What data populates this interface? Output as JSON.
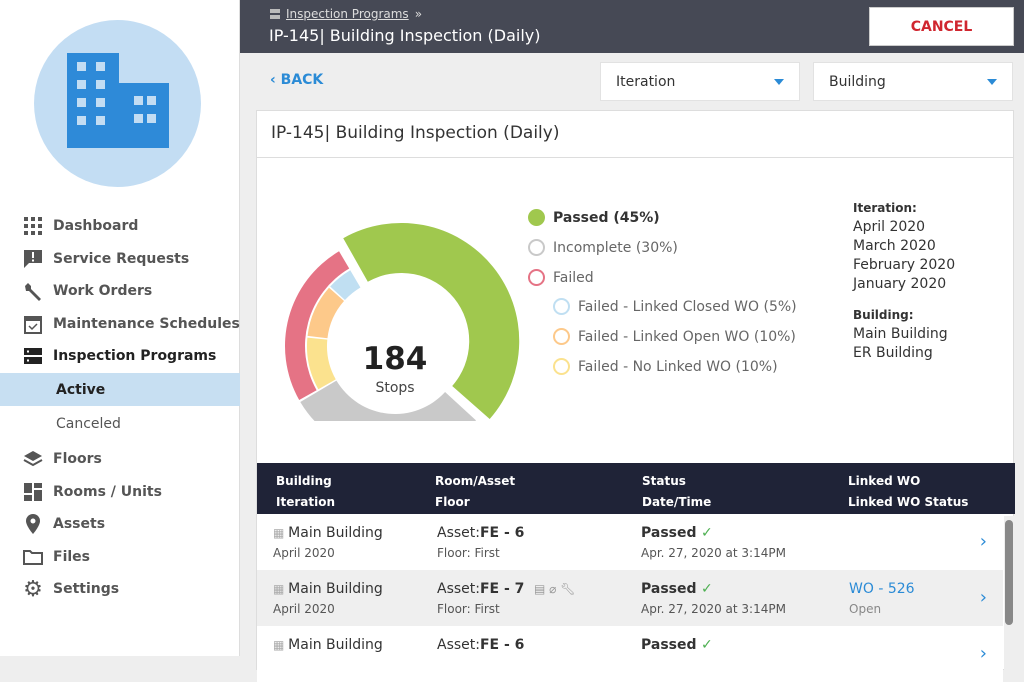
{
  "sidebar": {
    "items": [
      {
        "label": "Dashboard",
        "icon": "grid-icon"
      },
      {
        "label": "Service Requests",
        "icon": "alert-message-icon"
      },
      {
        "label": "Work Orders",
        "icon": "wrench-icon"
      },
      {
        "label": "Maintenance Schedules",
        "icon": "calendar-check-icon"
      },
      {
        "label": "Inspection Programs",
        "icon": "server-icon"
      },
      {
        "label": "Floors",
        "icon": "layers-icon"
      },
      {
        "label": "Rooms / Units",
        "icon": "dashboard-tiles-icon"
      },
      {
        "label": "Assets",
        "icon": "map-pin-icon"
      },
      {
        "label": "Files",
        "icon": "folder-icon"
      },
      {
        "label": "Settings",
        "icon": "gear-icon"
      }
    ],
    "sub": [
      "Active",
      "Canceled"
    ]
  },
  "header": {
    "breadcrumb": "Inspection Programs",
    "sep": "»",
    "title": "IP-145| Building Inspection (Daily)",
    "cancel": "CANCEL"
  },
  "toolbar": {
    "back": "BACK",
    "iteration": "Iteration",
    "building": "Building"
  },
  "card": {
    "title": "IP-145| Building Inspection (Daily)"
  },
  "chart_data": {
    "type": "pie",
    "center_value": "184",
    "center_label": "Stops",
    "outer": [
      {
        "label": "Passed (45%)",
        "value": 45,
        "color": "#a0c84e"
      },
      {
        "label": "Incomplete (30%)",
        "value": 30,
        "color": "#c9c9c9"
      },
      {
        "label": "Failed",
        "value": 25,
        "color": "#e57385"
      }
    ],
    "inner": [
      {
        "label": "Failed - No Linked WO (10%)",
        "value": 10,
        "color": "#fbe28e"
      },
      {
        "label": "Failed - Linked Open WO (10%)",
        "value": 10,
        "color": "#fdc98a"
      },
      {
        "label": "Failed - Linked Closed WO (5%)",
        "value": 5,
        "color": "#c0dff2"
      }
    ]
  },
  "filters": {
    "iteration_label": "Iteration:",
    "iterations": [
      "April 2020",
      "March 2020",
      "February 2020",
      "January 2020"
    ],
    "building_label": "Building:",
    "buildings": [
      "Main Building",
      "ER Building"
    ]
  },
  "table": {
    "headers": [
      [
        "Building",
        "Iteration"
      ],
      [
        "Room/Asset",
        "Floor"
      ],
      [
        "Status",
        "Date/Time"
      ],
      [
        "Linked WO",
        "Linked WO Status"
      ]
    ],
    "rows": [
      {
        "building": "Main Building",
        "iteration": "April 2020",
        "asset_prefix": "Asset:",
        "asset": "FE - 6",
        "floor": "Floor: First",
        "status": "Passed",
        "check": "✓",
        "date": "Apr. 27, 2020 at 3:14PM",
        "wo": "",
        "wo_status": ""
      },
      {
        "building": "Main Building",
        "iteration": "April 2020",
        "asset_prefix": "Asset:",
        "asset": "FE - 7",
        "floor": "Floor: First",
        "status": "Passed",
        "check": "✓",
        "date": "Apr. 27, 2020 at 3:14PM",
        "wo": "WO - 526",
        "wo_status": "Open"
      },
      {
        "building": "Main Building",
        "iteration": "",
        "asset_prefix": "Asset:",
        "asset": "FE - 6",
        "floor": "",
        "status": "Passed",
        "check": "✓",
        "date": "",
        "wo": "",
        "wo_status": ""
      }
    ]
  }
}
